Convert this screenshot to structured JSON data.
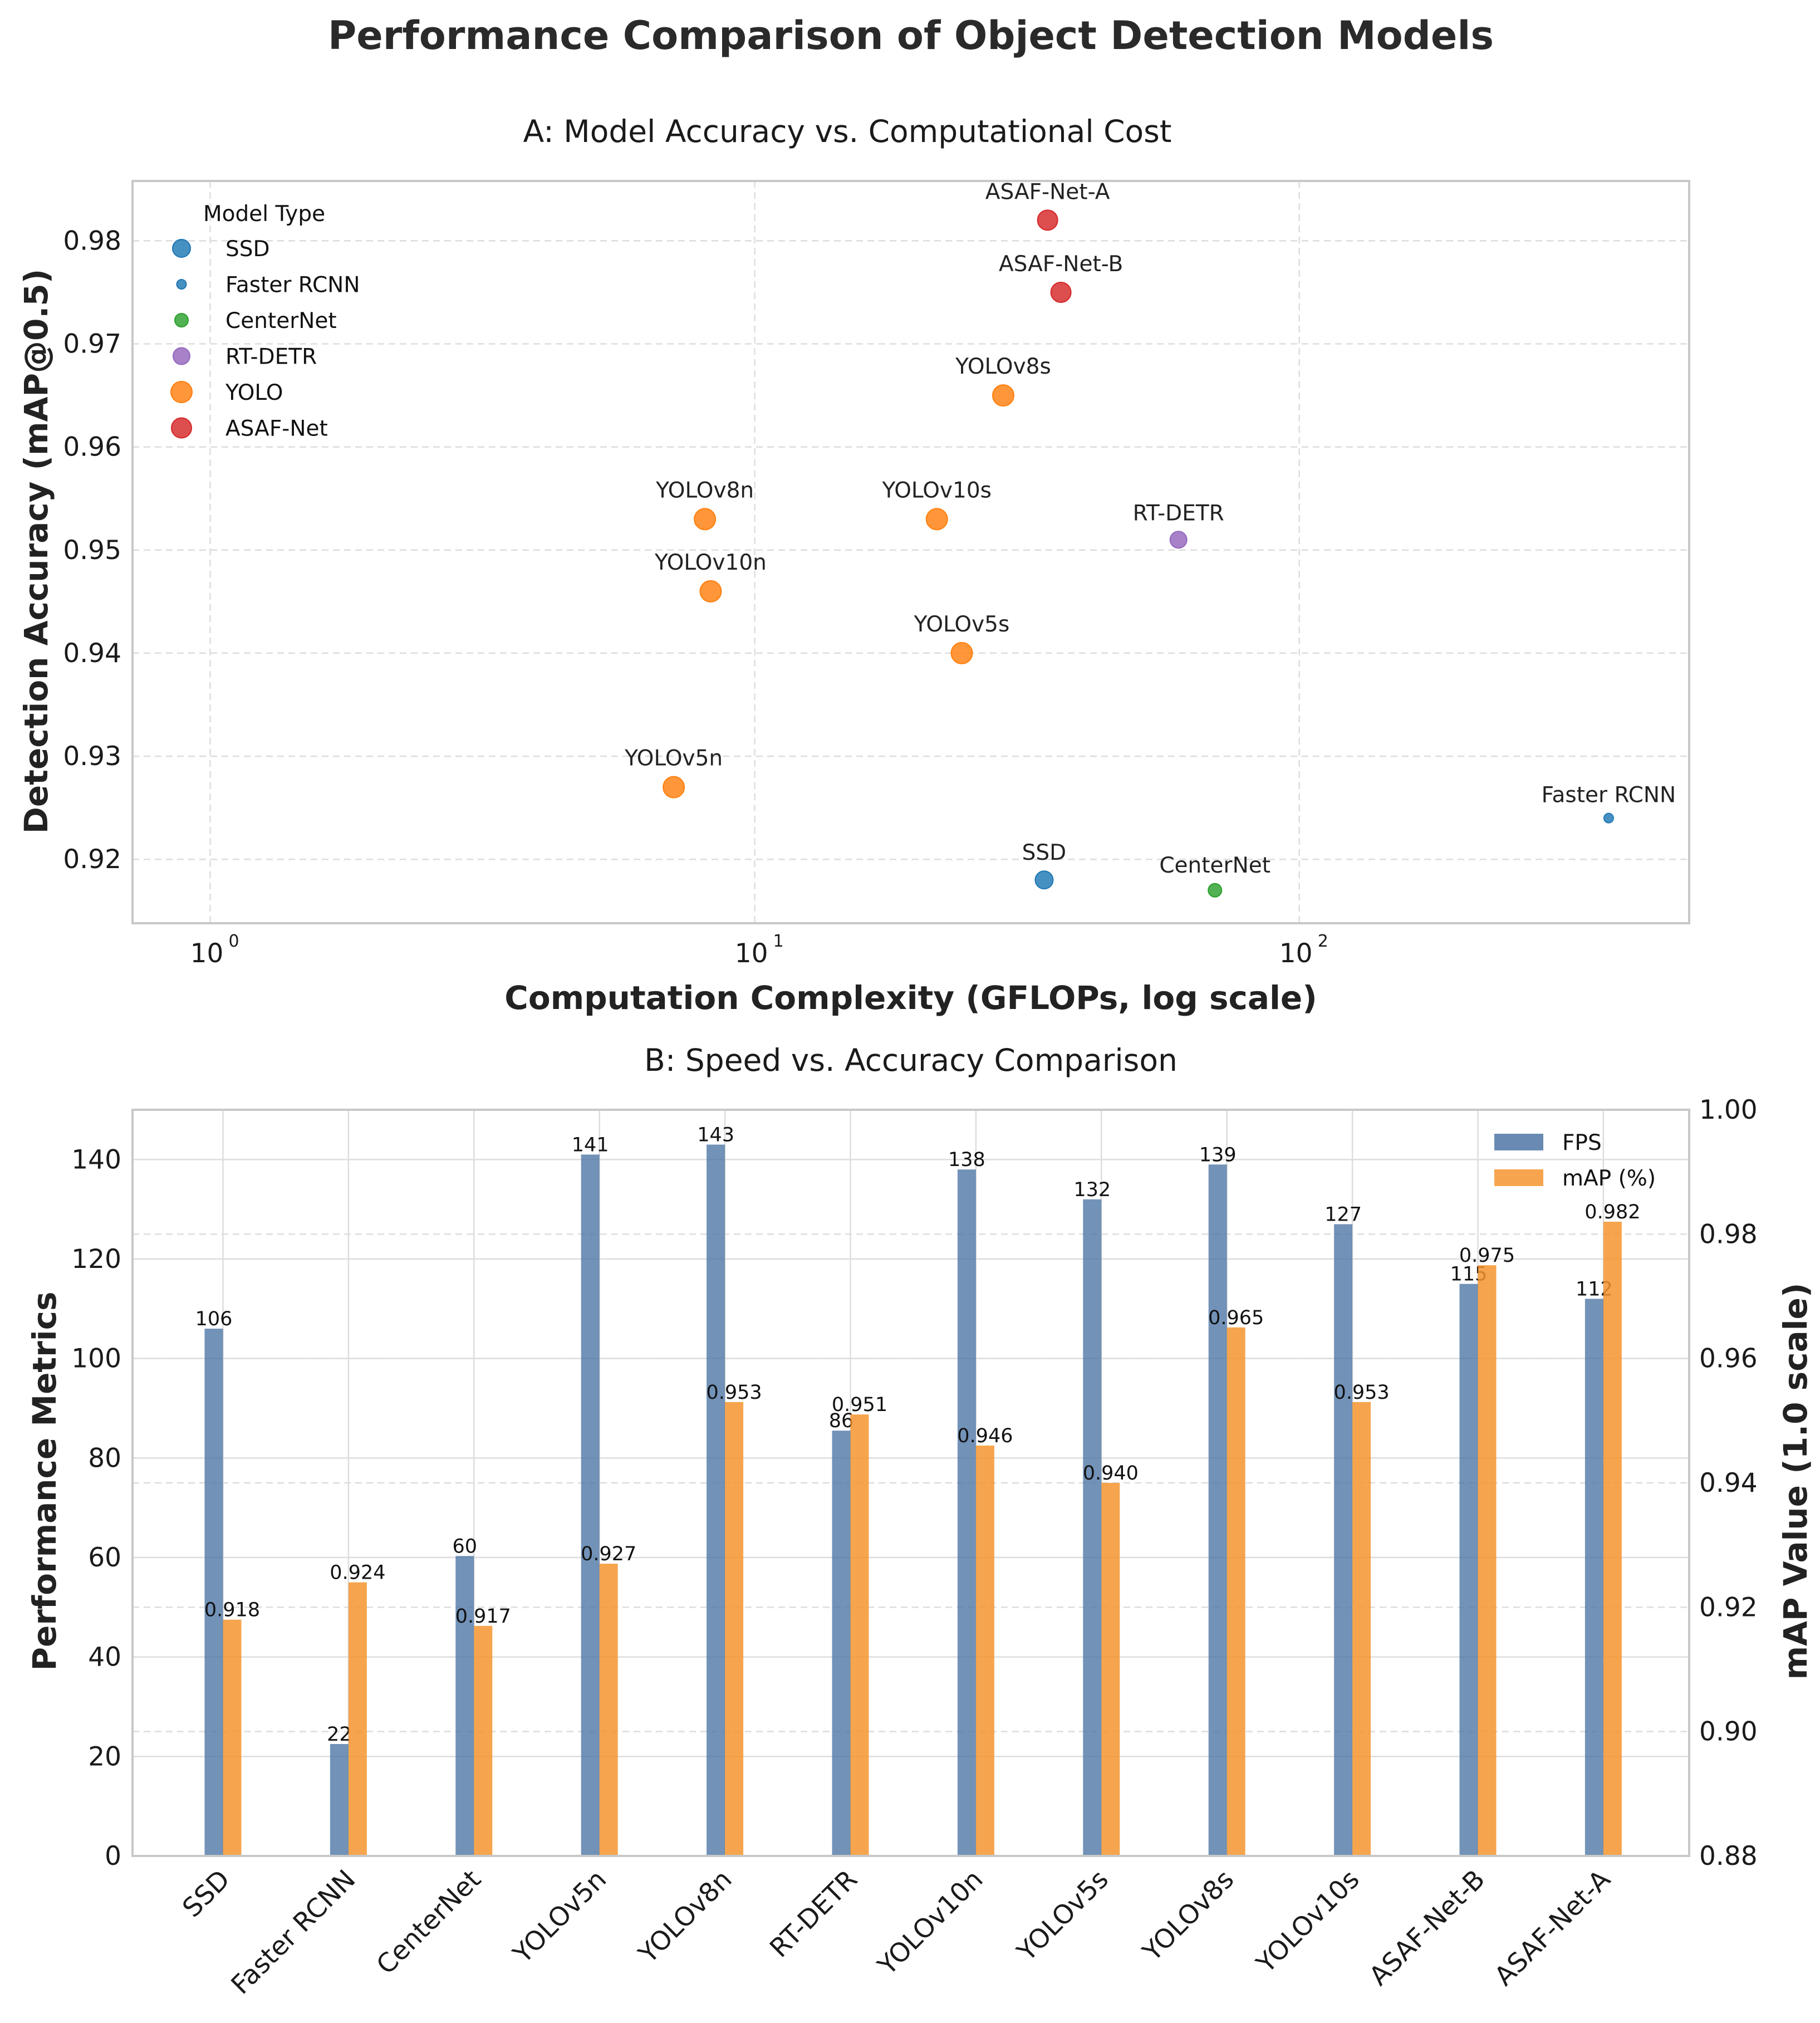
{
  "figure": {
    "title": "Performance Comparison of Object Detection Models"
  },
  "colors": {
    "SSD": "#1f77b4",
    "Faster RCNN": "#1f77b4",
    "CenterNet": "#2ca02c",
    "RT-DETR": "#9467bd",
    "YOLO": "#ff7f0e",
    "ASAF-Net": "#d62728",
    "fps_bar": "#4f77a6",
    "map_bar": "#f5952f"
  },
  "chart_data": [
    {
      "type": "scatter",
      "title": "A: Model Accuracy vs. Computational Cost",
      "xlabel": "Computation Complexity (GFLOPs, log scale)",
      "ylabel": "Detection Accuracy (mAP@0.5)",
      "xscale": "log",
      "xlim": [
        0.72,
        520
      ],
      "ylim": [
        0.9138,
        0.9858
      ],
      "xticks": [
        {
          "value": 1,
          "base": "10",
          "exp": "0"
        },
        {
          "value": 10,
          "base": "10",
          "exp": "1"
        },
        {
          "value": 100,
          "base": "10",
          "exp": "2"
        }
      ],
      "yticks": [
        "0.92",
        "0.93",
        "0.94",
        "0.95",
        "0.96",
        "0.97",
        "0.98"
      ],
      "legend": {
        "title": "Model Type",
        "placement": "top-left",
        "entries": [
          "SSD",
          "Faster RCNN",
          "CenterNet",
          "RT-DETR",
          "YOLO",
          "ASAF-Net"
        ]
      },
      "points": [
        {
          "label": "SSD",
          "type": "SSD",
          "gflops": 34,
          "map": 0.918
        },
        {
          "label": "Faster RCNN",
          "type": "Faster RCNN",
          "gflops": 370,
          "map": 0.924
        },
        {
          "label": "CenterNet",
          "type": "CenterNet",
          "gflops": 70,
          "map": 0.917
        },
        {
          "label": "RT-DETR",
          "type": "RT-DETR",
          "gflops": 60,
          "map": 0.951
        },
        {
          "label": "YOLOv5n",
          "type": "YOLO",
          "gflops": 7.1,
          "map": 0.927
        },
        {
          "label": "YOLOv8n",
          "type": "YOLO",
          "gflops": 8.1,
          "map": 0.953
        },
        {
          "label": "YOLOv10n",
          "type": "YOLO",
          "gflops": 8.3,
          "map": 0.946
        },
        {
          "label": "YOLOv5s",
          "type": "YOLO",
          "gflops": 24,
          "map": 0.94
        },
        {
          "label": "YOLOv10s",
          "type": "YOLO",
          "gflops": 21.6,
          "map": 0.953
        },
        {
          "label": "YOLOv8s",
          "type": "YOLO",
          "gflops": 28.6,
          "map": 0.965
        },
        {
          "label": "ASAF-Net-A",
          "type": "ASAF-Net",
          "gflops": 34.5,
          "map": 0.982
        },
        {
          "label": "ASAF-Net-B",
          "type": "ASAF-Net",
          "gflops": 36.5,
          "map": 0.975
        }
      ]
    },
    {
      "type": "bar",
      "title": "B: Speed vs. Accuracy Comparison",
      "ylabel": "Performance Metrics",
      "y2label": "mAP Value (1.0 scale)",
      "ylim": [
        0,
        150
      ],
      "y2lim": [
        0.88,
        1.0
      ],
      "yticks": [
        "0",
        "20",
        "40",
        "60",
        "80",
        "100",
        "120",
        "140"
      ],
      "y2ticks": [
        "0.88",
        "0.90",
        "0.92",
        "0.94",
        "0.96",
        "0.98",
        "1.00"
      ],
      "legend": {
        "placement": "top-right",
        "entries": [
          "FPS",
          "mAP (%)"
        ]
      },
      "categories": [
        "SSD",
        "Faster RCNN",
        "CenterNet",
        "YOLOv5n",
        "YOLOv8n",
        "RT-DETR",
        "YOLOv10n",
        "YOLOv5s",
        "YOLOv8s",
        "YOLOv10s",
        "ASAF-Net-B",
        "ASAF-Net-A"
      ],
      "series": [
        {
          "name": "FPS",
          "values": [
            106,
            22.5,
            60.3,
            141,
            143,
            85.5,
            138,
            132,
            139,
            127,
            115,
            112
          ],
          "labels": [
            "106",
            "22",
            "60",
            "141",
            "143",
            "86",
            "138",
            "132",
            "139",
            "127",
            "115",
            "112"
          ]
        },
        {
          "name": "mAP (%)",
          "values": [
            0.918,
            0.924,
            0.917,
            0.927,
            0.953,
            0.951,
            0.946,
            0.94,
            0.965,
            0.953,
            0.975,
            0.982
          ],
          "labels": [
            "0.918",
            "0.924",
            "0.917",
            "0.927",
            "0.953",
            "0.951",
            "0.946",
            "0.940",
            "0.965",
            "0.953",
            "0.975",
            "0.982"
          ]
        }
      ]
    }
  ]
}
